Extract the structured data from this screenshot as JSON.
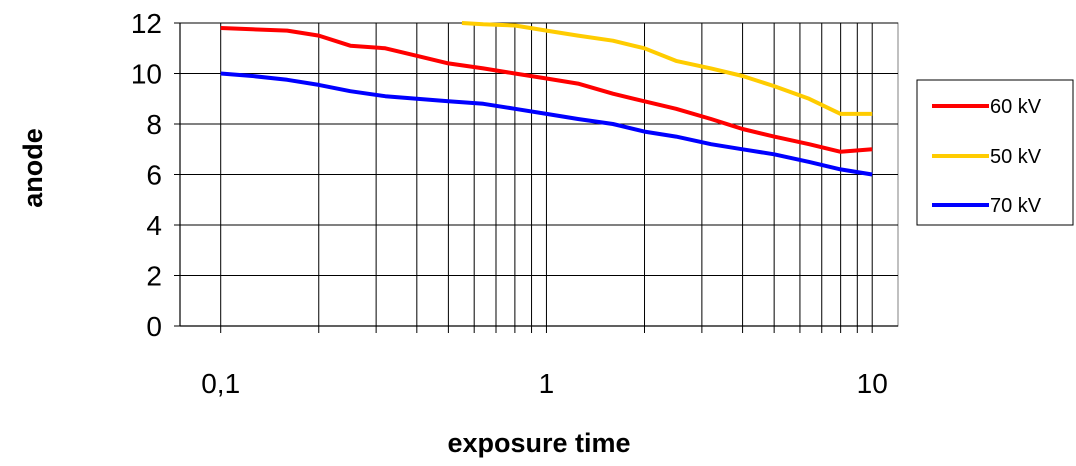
{
  "chart_data": {
    "type": "line",
    "xlabel": "exposure time",
    "ylabel": "anode",
    "x_scale": "log",
    "xlim": [
      0.075,
      12
    ],
    "ylim": [
      0,
      12
    ],
    "y_ticks": [
      0,
      2,
      4,
      6,
      8,
      10,
      12
    ],
    "x_tick_labels": [
      {
        "value": 0.1,
        "label": "0,1"
      },
      {
        "value": 1,
        "label": "1"
      },
      {
        "value": 10,
        "label": "10"
      }
    ],
    "grid": true,
    "legend_position": "right",
    "series": [
      {
        "name": "60 kV",
        "color": "#ff0000",
        "x": [
          0.1,
          0.125,
          0.16,
          0.2,
          0.25,
          0.32,
          0.4,
          0.5,
          0.64,
          0.8,
          1.0,
          1.25,
          1.6,
          2.0,
          2.5,
          3.2,
          4.0,
          5.0,
          6.4,
          8.0,
          10.0
        ],
        "values": [
          11.8,
          11.75,
          11.7,
          11.5,
          11.1,
          11.0,
          10.7,
          10.4,
          10.2,
          10.0,
          9.8,
          9.6,
          9.2,
          8.9,
          8.6,
          8.2,
          7.8,
          7.5,
          7.2,
          6.9,
          7.0
        ]
      },
      {
        "name": "50 kV",
        "color": "#ffcc00",
        "x": [
          0.55,
          0.64,
          0.8,
          1.0,
          1.25,
          1.6,
          2.0,
          2.5,
          3.2,
          4.0,
          5.0,
          6.4,
          8.0,
          10.0
        ],
        "values": [
          12.0,
          11.95,
          11.9,
          11.7,
          11.5,
          11.3,
          11.0,
          10.5,
          10.2,
          9.9,
          9.5,
          9.0,
          8.4,
          8.4
        ]
      },
      {
        "name": "70 kV",
        "color": "#0000ff",
        "x": [
          0.1,
          0.125,
          0.16,
          0.2,
          0.25,
          0.32,
          0.4,
          0.5,
          0.64,
          0.8,
          1.0,
          1.25,
          1.6,
          2.0,
          2.5,
          3.2,
          4.0,
          5.0,
          6.4,
          8.0,
          10.0
        ],
        "values": [
          10.0,
          9.9,
          9.75,
          9.55,
          9.3,
          9.1,
          9.0,
          8.9,
          8.8,
          8.6,
          8.4,
          8.2,
          8.0,
          7.7,
          7.5,
          7.2,
          7.0,
          6.8,
          6.5,
          6.2,
          6.0
        ]
      }
    ]
  }
}
